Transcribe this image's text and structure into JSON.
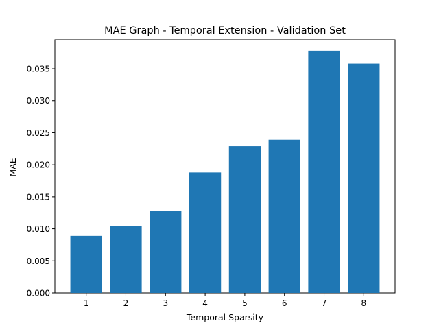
{
  "chart_data": {
    "type": "bar",
    "title": "MAE Graph - Temporal Extension - Validation Set",
    "xlabel": "Temporal Sparsity",
    "ylabel": "MAE",
    "categories": [
      "1",
      "2",
      "3",
      "4",
      "5",
      "6",
      "7",
      "8"
    ],
    "values": [
      0.0089,
      0.0104,
      0.0128,
      0.0188,
      0.0229,
      0.0239,
      0.0378,
      0.0358
    ],
    "ylim": [
      0,
      0.0395
    ],
    "yticks": [
      "0.000",
      "0.005",
      "0.010",
      "0.015",
      "0.020",
      "0.025",
      "0.030",
      "0.035"
    ],
    "ytick_values": [
      0,
      0.005,
      0.01,
      0.015,
      0.02,
      0.025,
      0.03,
      0.035
    ],
    "bar_color": "#1f77b4",
    "grid": false,
    "legend": "none"
  }
}
